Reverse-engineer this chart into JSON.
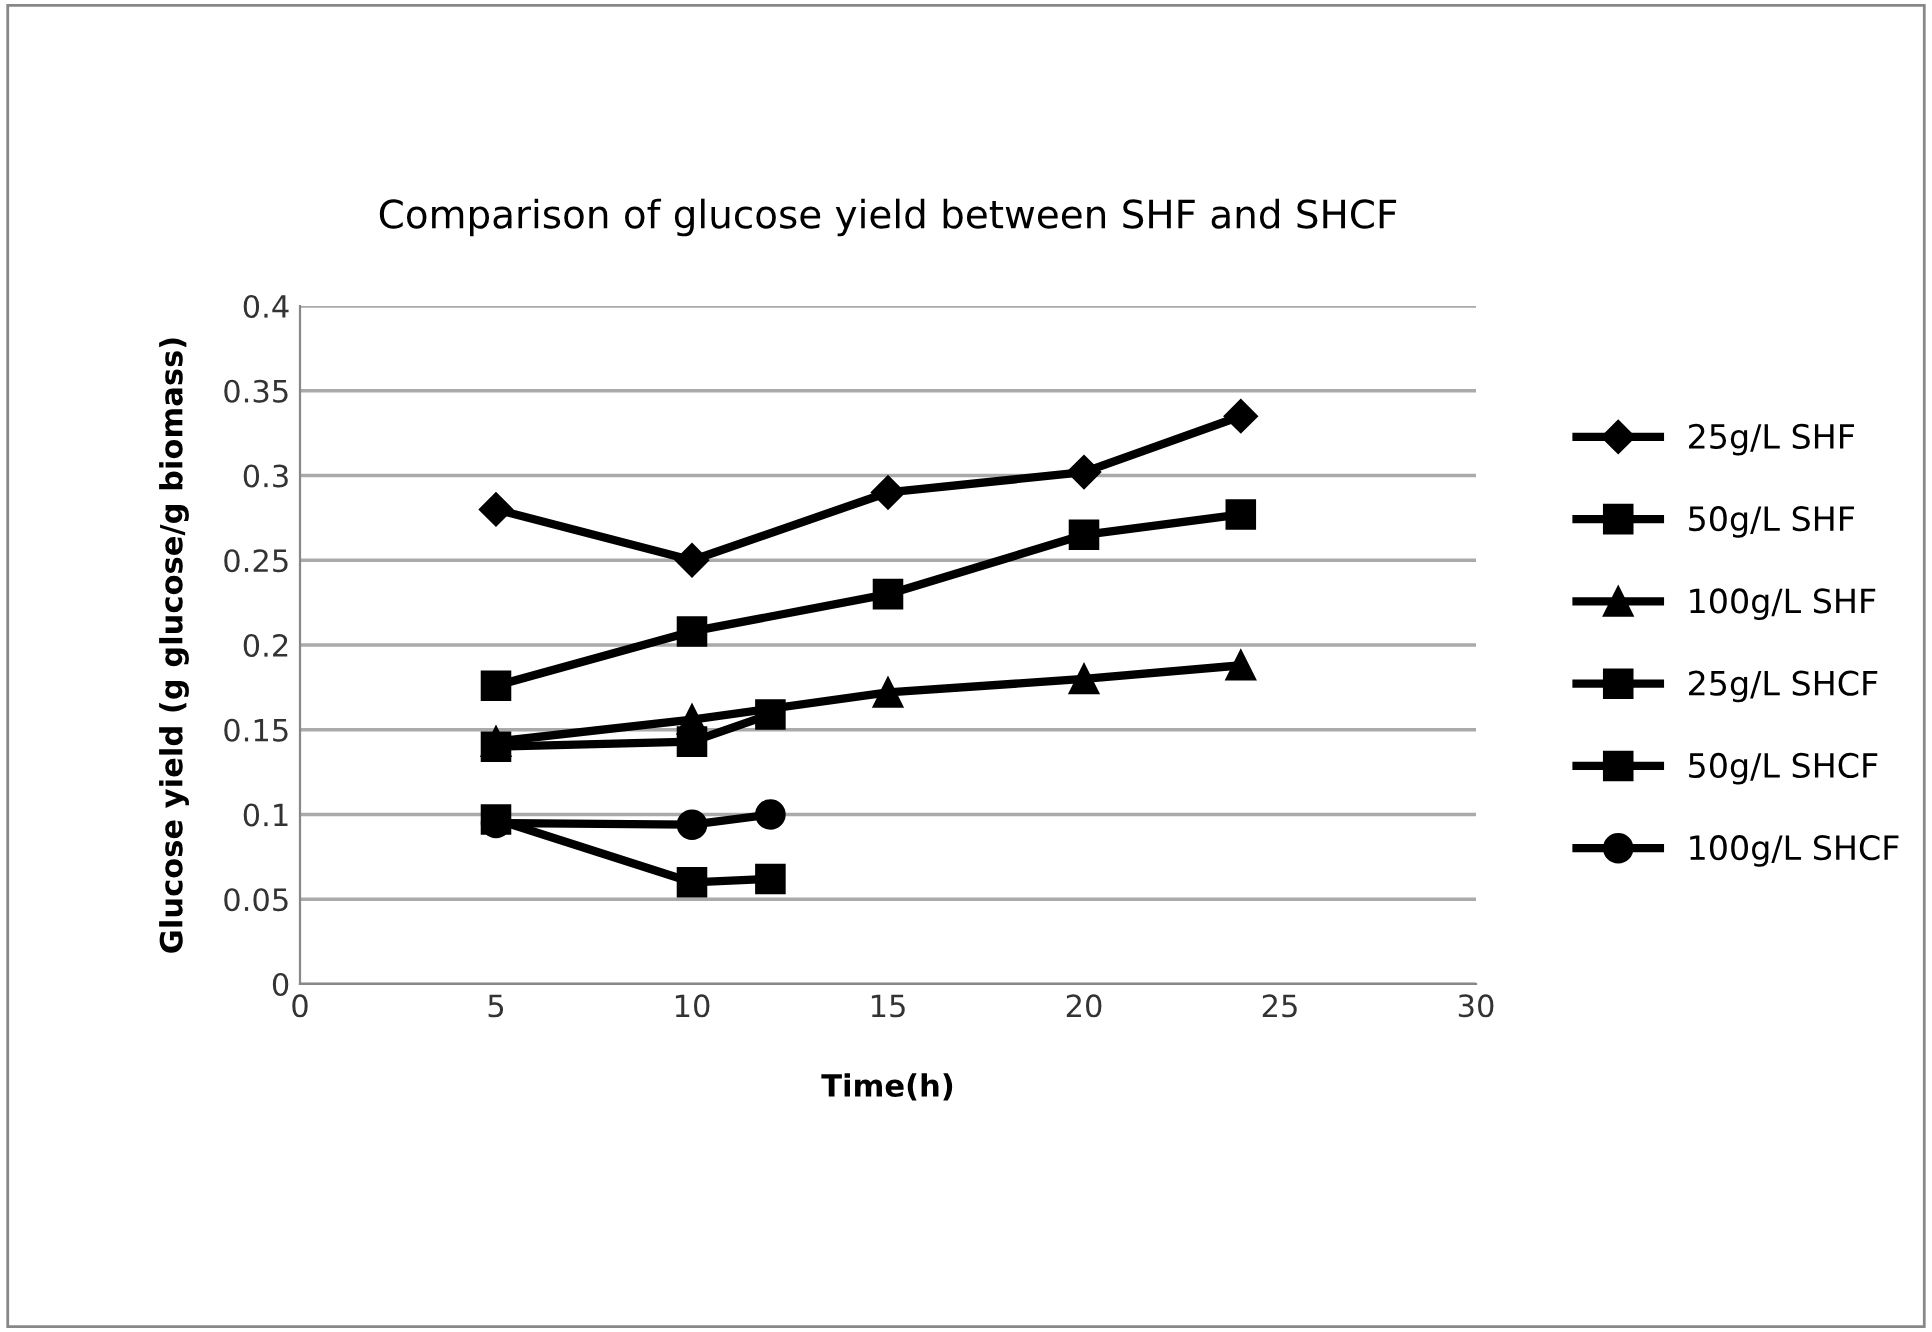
{
  "chart_data": {
    "type": "line",
    "title": "Comparison of glucose yield between SHF and SHCF",
    "xlabel": "Time(h)",
    "ylabel": "Glucose yield (g glucose/g biomass)",
    "xlim": [
      0,
      30
    ],
    "xticks": [
      0,
      5,
      10,
      15,
      20,
      25,
      30
    ],
    "ylim": [
      0,
      0.4
    ],
    "yticks": [
      0,
      0.05,
      0.1,
      0.15,
      0.2,
      0.25,
      0.3,
      0.35,
      0.4
    ],
    "grid": "y",
    "legend": "right",
    "series": [
      {
        "name": "25g/L SHF",
        "color": "#000000",
        "marker": "diamond",
        "x": [
          5,
          10,
          15,
          20,
          24
        ],
        "values": [
          0.28,
          0.25,
          0.29,
          0.302,
          0.335
        ]
      },
      {
        "name": "50g/L SHF",
        "color": "#000000",
        "marker": "square",
        "x": [
          5,
          10,
          15,
          20,
          24
        ],
        "values": [
          0.176,
          0.208,
          0.23,
          0.265,
          0.277
        ]
      },
      {
        "name": "100g/L SHF",
        "color": "#000000",
        "marker": "triangle",
        "x": [
          5,
          10,
          15,
          20,
          24
        ],
        "values": [
          0.143,
          0.156,
          0.172,
          0.18,
          0.188
        ]
      },
      {
        "name": "25g/L SHCF",
        "color": "#000000",
        "marker": "square",
        "x": [
          5,
          10,
          12
        ],
        "values": [
          0.14,
          0.143,
          0.159
        ]
      },
      {
        "name": "50g/L SHCF",
        "color": "#000000",
        "marker": "square",
        "x": [
          5,
          10,
          12
        ],
        "values": [
          0.097,
          0.06,
          0.062
        ]
      },
      {
        "name": "100g/L SHCF",
        "color": "#000000",
        "marker": "circle",
        "x": [
          5,
          10,
          12
        ],
        "values": [
          0.095,
          0.094,
          0.1
        ]
      }
    ]
  }
}
